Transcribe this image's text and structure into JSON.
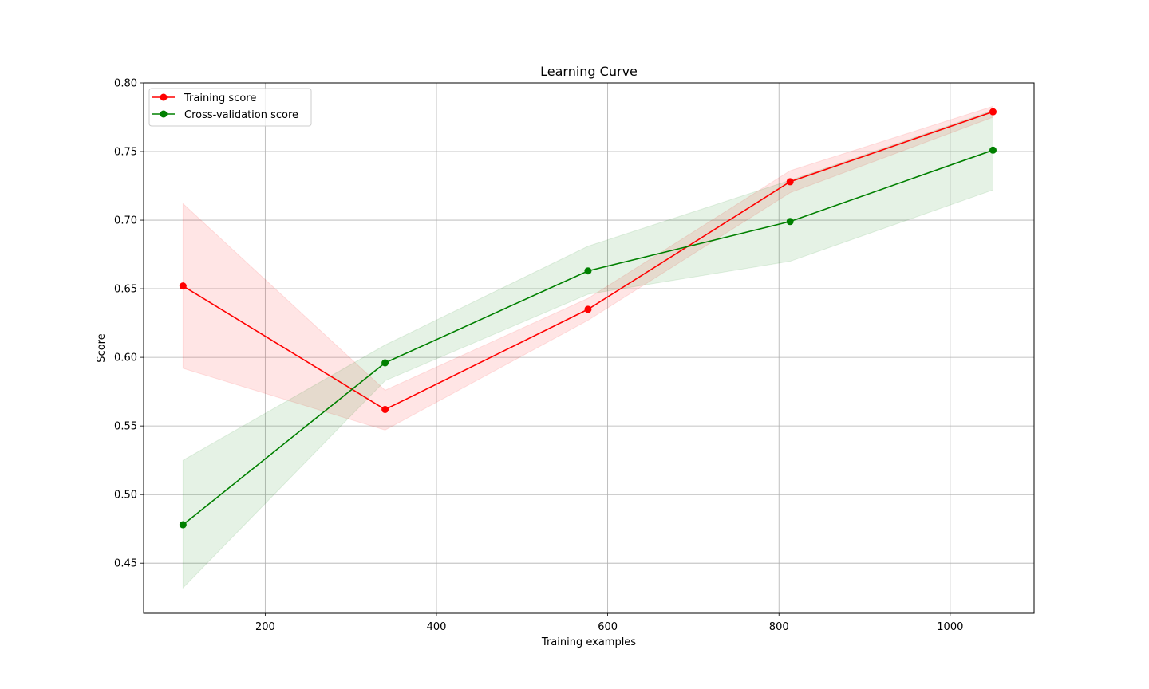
{
  "chart_data": {
    "type": "line",
    "title": "Learning Curve",
    "xlabel": "Training examples",
    "ylabel": "Score",
    "xlim": [
      58,
      1098
    ],
    "ylim": [
      0.4135,
      0.8
    ],
    "xticks": [
      200,
      400,
      600,
      800,
      1000
    ],
    "yticks": [
      0.45,
      0.5,
      0.55,
      0.6,
      0.65,
      0.7,
      0.75,
      0.8
    ],
    "xtick_labels": [
      "200",
      "400",
      "600",
      "800",
      "1000"
    ],
    "ytick_labels": [
      "0.45",
      "0.50",
      "0.55",
      "0.60",
      "0.65",
      "0.70",
      "0.75",
      "0.80"
    ],
    "grid": true,
    "legend_position": "top-left",
    "x": [
      104,
      340,
      577,
      813,
      1050
    ],
    "series": [
      {
        "name": "Training score",
        "color": "#ff0000",
        "band_color": "#ff0000",
        "values": [
          0.652,
          0.562,
          0.635,
          0.728,
          0.779
        ],
        "upper": [
          0.712,
          0.576,
          0.643,
          0.736,
          0.783
        ],
        "lower": [
          0.592,
          0.547,
          0.627,
          0.72,
          0.775
        ]
      },
      {
        "name": "Cross-validation score",
        "color": "#008000",
        "band_color": "#008000",
        "values": [
          0.478,
          0.596,
          0.663,
          0.699,
          0.751
        ],
        "upper": [
          0.525,
          0.609,
          0.681,
          0.729,
          0.78
        ],
        "lower": [
          0.432,
          0.583,
          0.646,
          0.67,
          0.722
        ]
      }
    ]
  }
}
